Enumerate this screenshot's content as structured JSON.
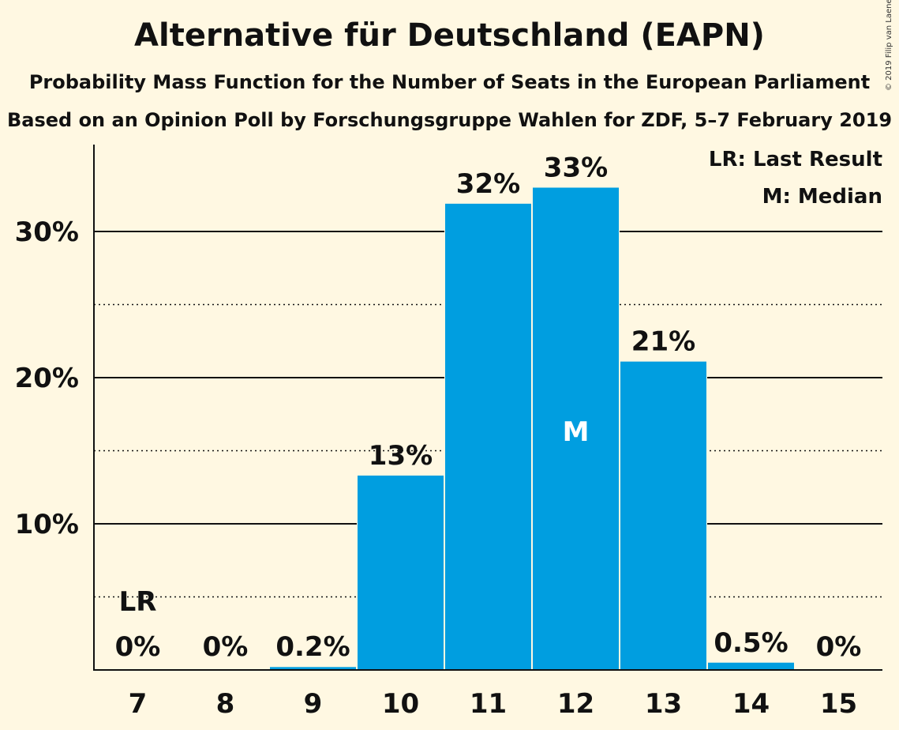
{
  "chart_data": {
    "type": "bar",
    "title": "Alternative für Deutschland (EAPN)",
    "subtitle": "Probability Mass Function for the Number of Seats in the European Parliament",
    "subtitle2": "Based on an Opinion Poll by Forschungsgruppe Wahlen for ZDF, 5–7 February 2019",
    "copyright": "© 2019 Filip van Laenen",
    "categories": [
      "7",
      "8",
      "9",
      "10",
      "11",
      "12",
      "13",
      "14",
      "15"
    ],
    "values": [
      0,
      0,
      0.2,
      13.3,
      31.9,
      33.0,
      21.1,
      0.5,
      0
    ],
    "value_labels": [
      "0%",
      "0%",
      "0.2%",
      "13%",
      "32%",
      "33%",
      "21%",
      "0.5%",
      "0%"
    ],
    "ylim": [
      0,
      36
    ],
    "yticks_major": [
      10,
      20,
      30
    ],
    "yticks_minor": [
      5,
      15,
      25
    ],
    "ytick_labels": [
      "10%",
      "20%",
      "30%"
    ],
    "last_result_category": "7",
    "last_result_marker": "LR",
    "median_category": "12",
    "median_marker": "M",
    "legend": [
      "LR: Last Result",
      "M: Median"
    ],
    "legend_position": "top-right",
    "bar_color": "#009EE0",
    "background_color": "#FFF8E2"
  }
}
